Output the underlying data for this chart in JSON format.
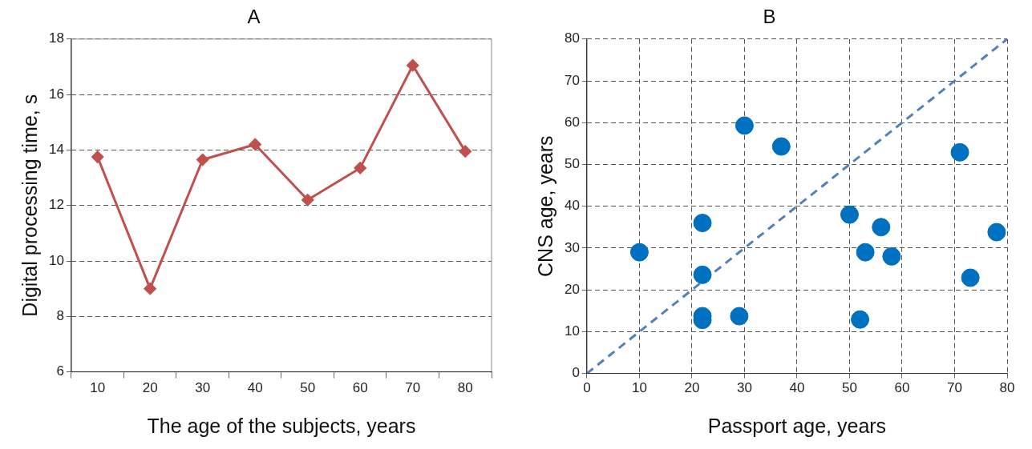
{
  "chart_data": [
    {
      "type": "line",
      "title": "A",
      "xlabel": "The age of the subjects, years",
      "ylabel": "Digital processing time, s",
      "categories": [
        "10",
        "20",
        "30",
        "40",
        "50",
        "60",
        "70",
        "80"
      ],
      "series": [
        {
          "color": "#c0504d",
          "values": [
            13.75,
            9.0,
            13.65,
            14.2,
            12.2,
            13.35,
            17.05,
            13.95
          ],
          "marker": "diamond"
        }
      ],
      "ylim": [
        6,
        18
      ],
      "yticks": [
        6,
        8,
        10,
        12,
        14,
        16,
        18
      ],
      "grid": "y"
    },
    {
      "type": "scatter",
      "title": "B",
      "xlabel": "Passport age, years",
      "ylabel": "CNS age, years",
      "xlim": [
        0,
        80
      ],
      "xticks": [
        0,
        10,
        20,
        30,
        40,
        50,
        60,
        70,
        80
      ],
      "ylim": [
        0,
        80
      ],
      "yticks": [
        0,
        10,
        20,
        30,
        40,
        50,
        60,
        70,
        80
      ],
      "grid": true,
      "series": [
        {
          "type": "scatter",
          "color": "#0070c0",
          "marker": "circle",
          "x": [
            10,
            22,
            22,
            22,
            22,
            29,
            30,
            37,
            50,
            52,
            53,
            56,
            58,
            71,
            73,
            78
          ],
          "values": [
            29,
            36,
            23.6,
            13.7,
            12.8,
            13.7,
            59.3,
            54.3,
            38,
            12.9,
            29,
            35,
            28,
            52.9,
            22.9,
            33.8
          ]
        },
        {
          "type": "line",
          "color": "#4f81bd",
          "marker": "none",
          "line_style": "dashed",
          "x": [
            0,
            80
          ],
          "values": [
            0,
            80
          ]
        }
      ]
    }
  ]
}
